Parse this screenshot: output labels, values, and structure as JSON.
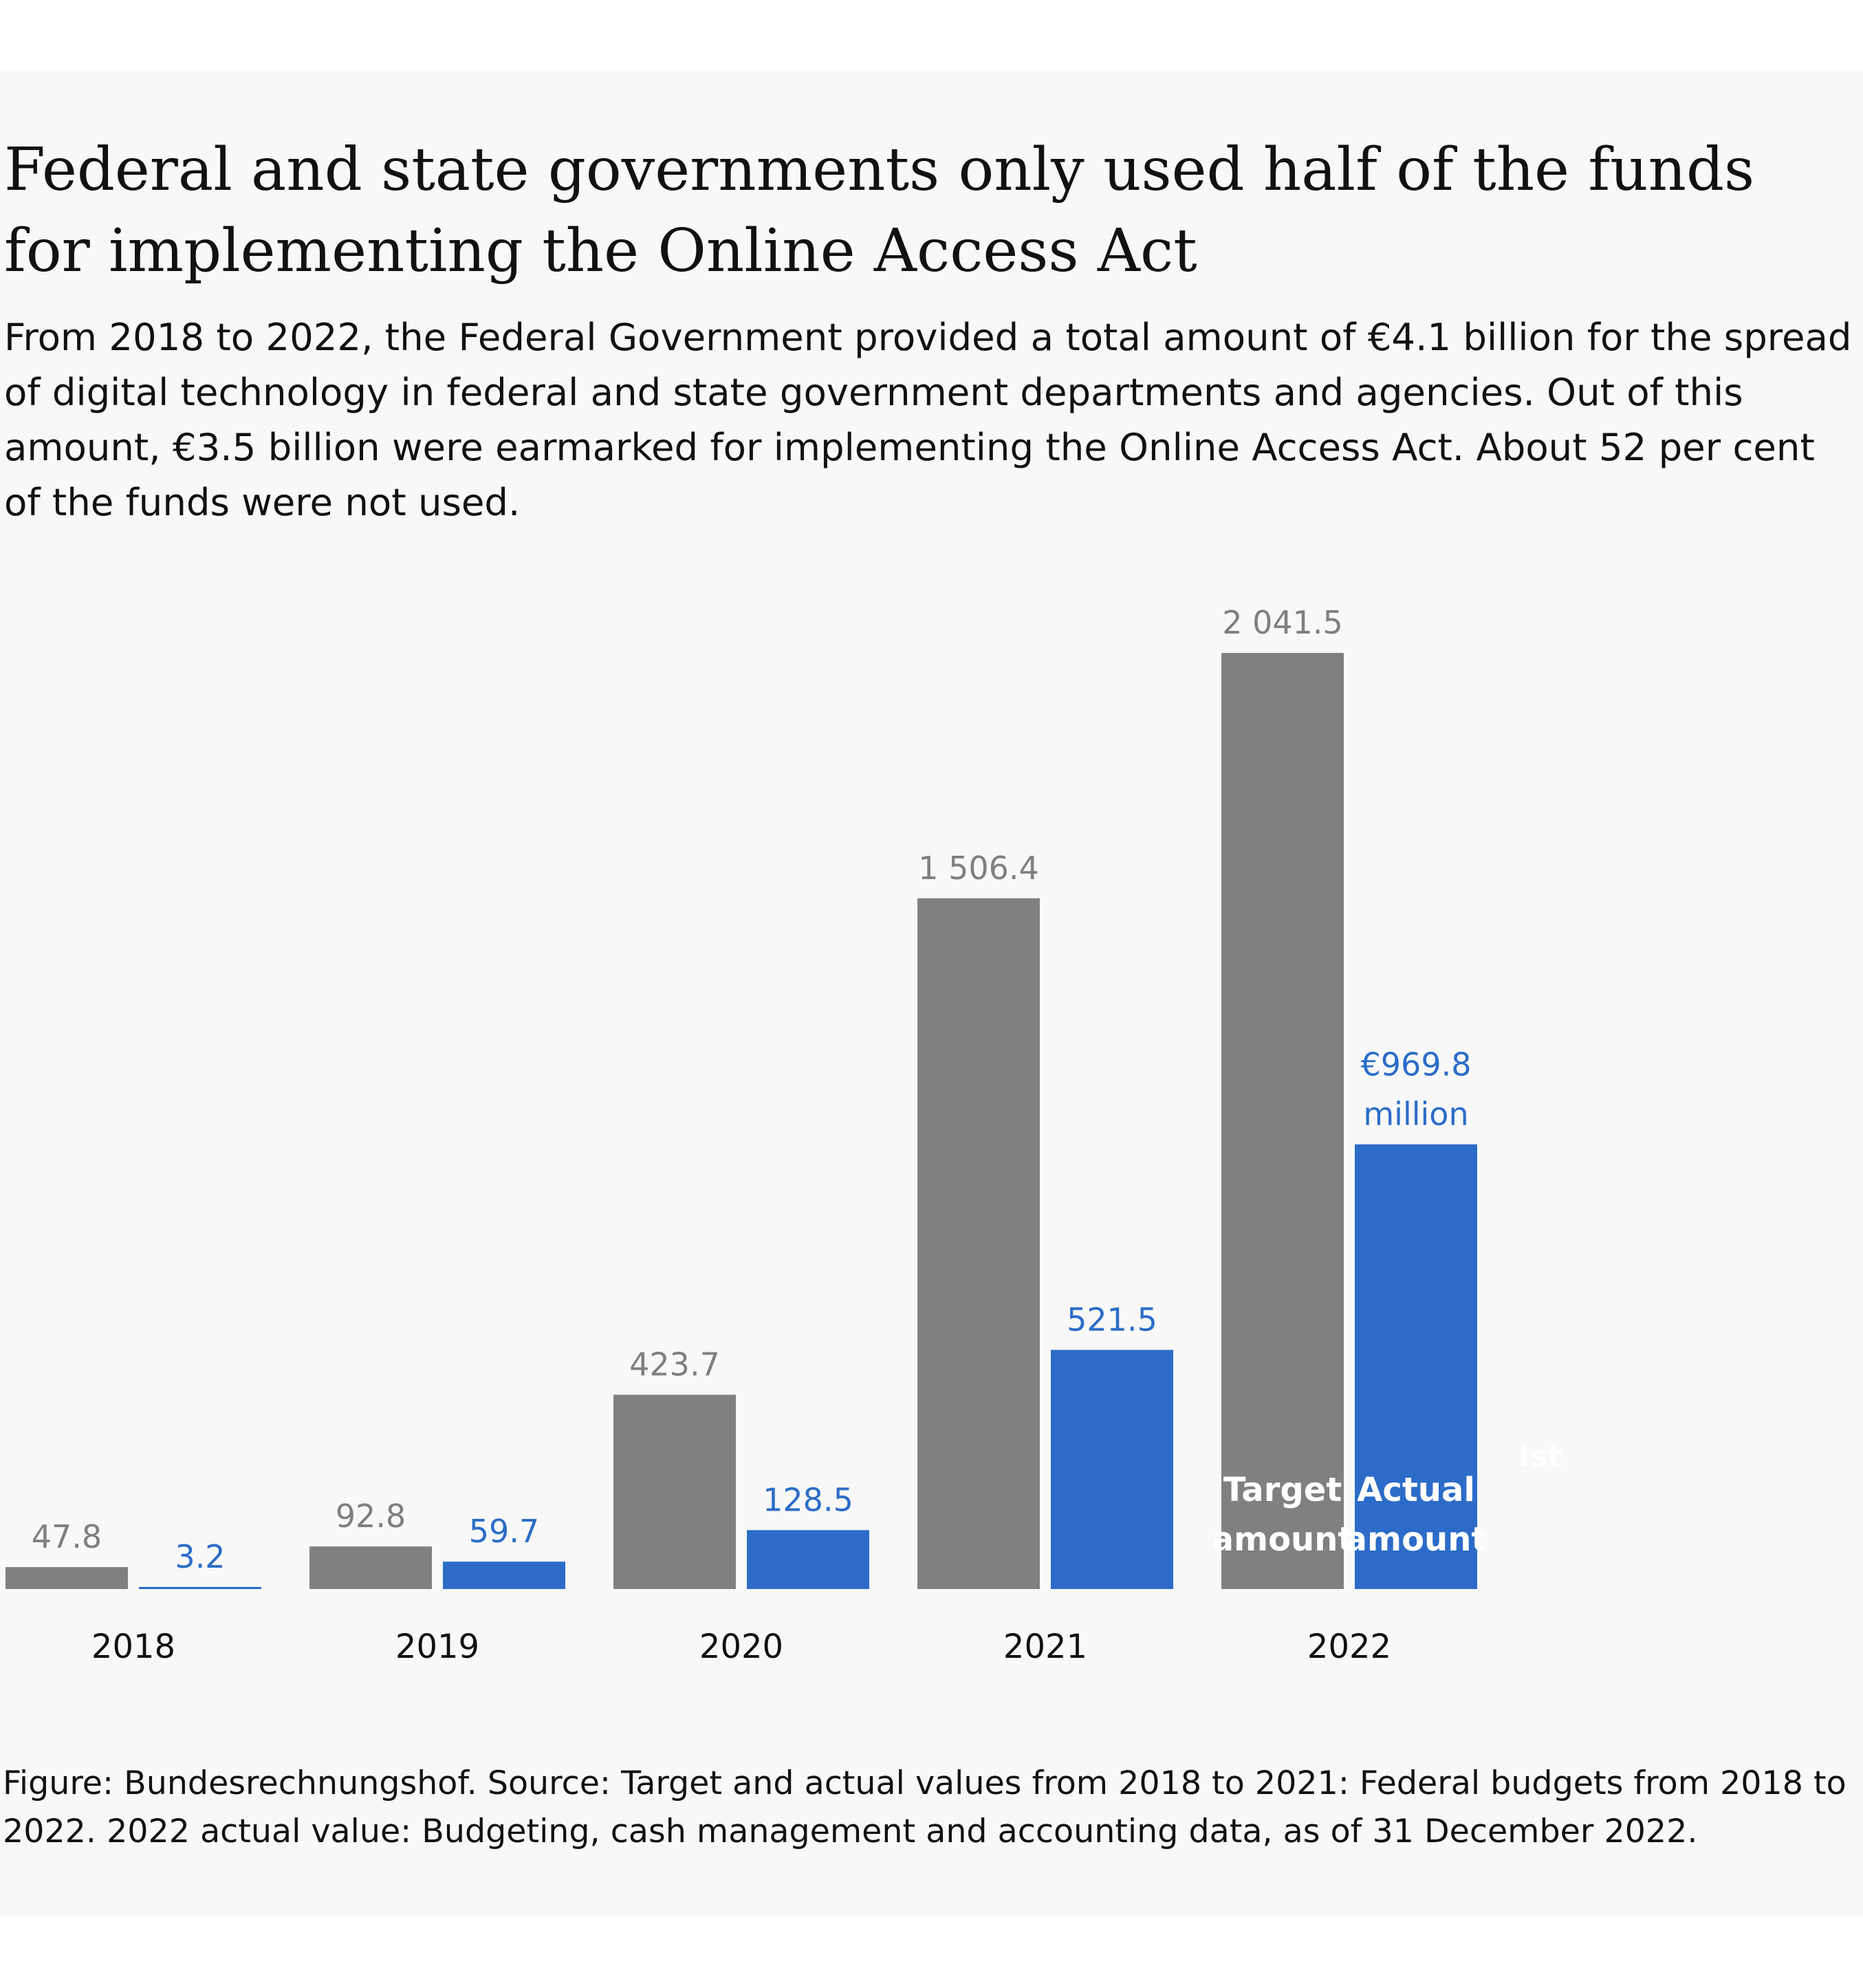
{
  "title": "Federal and state governments only used half of the funds for implementing the Online Access Act",
  "subtitle": "From 2018 to 2022, the Federal Government provided a total amount of €4.1 billion for the spread of digital technology in federal and state government departments and agencies. Out of this amount, €3.5 billion were earmarked for implementing the Online Access Act. About 52 per cent of the funds were not used.",
  "footer": "Figure: Bundesrechnungshof. Source: Target and actual values from 2018 to 2021: Federal budgets from 2018 to 2022. 2022 actual value: Budgeting, cash management and accounting data, as of 31 December 2022.",
  "chart_data": {
    "type": "bar",
    "categories": [
      "2018",
      "2019",
      "2020",
      "2021",
      "2022"
    ],
    "series": [
      {
        "name": "Target amount",
        "values": [
          47.8,
          92.8,
          423.7,
          1506.4,
          2041.5
        ],
        "labels": [
          "47.8",
          "92.8",
          "423.7",
          "1 506.4",
          "2 041.5"
        ],
        "color": "#808080",
        "label_color": "#7f7f7f"
      },
      {
        "name": "Actual amount",
        "values": [
          3.2,
          59.7,
          128.5,
          521.5,
          969.8
        ],
        "labels": [
          "3.2",
          "59.7",
          "128.5",
          "521.5",
          "€969.8 million"
        ],
        "color": "#2c6cc8",
        "label_color": "#2c6cc8"
      }
    ],
    "legend": "inside the 2022 bars, near the bottom",
    "annotations": [
      "Ist"
    ],
    "ylim": [
      0,
      2100
    ],
    "grid": false,
    "axis_text_color": "#111111"
  }
}
